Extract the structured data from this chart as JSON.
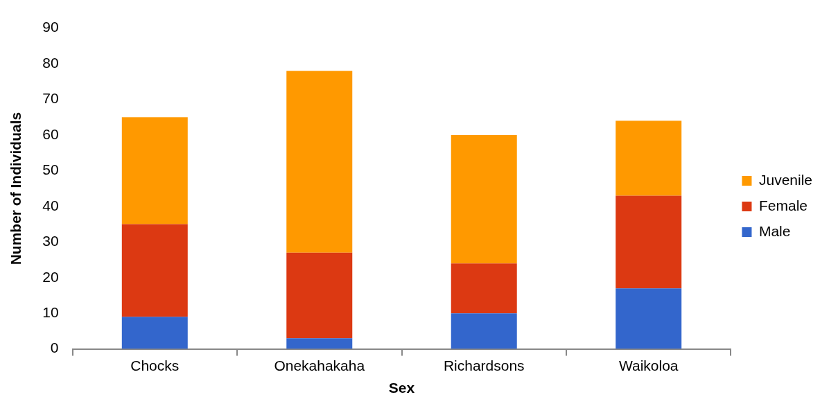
{
  "chart_data": {
    "type": "bar",
    "stacked": true,
    "xlabel": "Sex",
    "ylabel": "Number of Individuals",
    "categories": [
      "Chocks",
      "Onekahakaha",
      "Richardsons",
      "Waikoloa"
    ],
    "series": [
      {
        "name": "Male",
        "color": "#3366cc",
        "values": [
          9,
          3,
          10,
          17
        ]
      },
      {
        "name": "Female",
        "color": "#dc3912",
        "values": [
          26,
          24,
          14,
          26
        ]
      },
      {
        "name": "Juvenile",
        "color": "#ff9900",
        "values": [
          30,
          51,
          36,
          21
        ]
      }
    ],
    "ylim": [
      0,
      90
    ],
    "yticks": [
      0,
      10,
      20,
      30,
      40,
      50,
      60,
      70,
      80,
      90
    ],
    "grid": false,
    "legend": "right"
  }
}
